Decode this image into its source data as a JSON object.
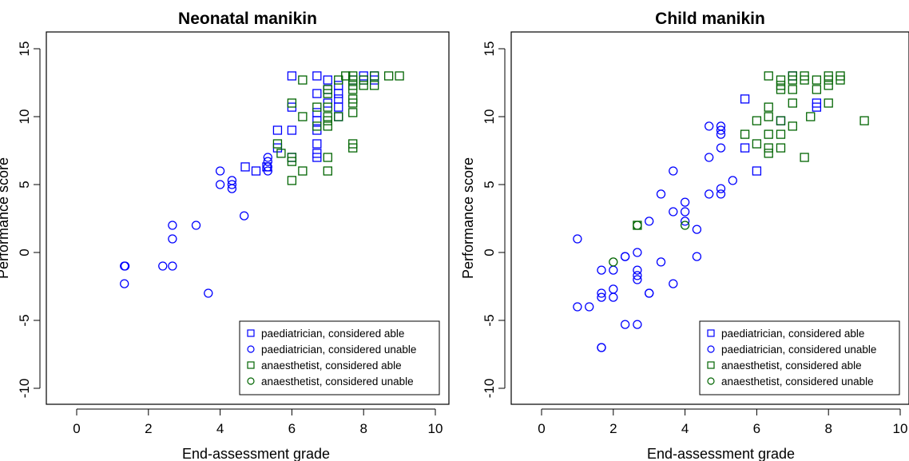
{
  "chart_data": [
    {
      "type": "scatter",
      "title": "Neonatal manikin",
      "xlabel": "End-assessment grade",
      "ylabel": "Performance score",
      "xlim": [
        0,
        10
      ],
      "ylim": [
        -11,
        16
      ],
      "xticks": [
        0,
        2,
        4,
        6,
        8,
        10
      ],
      "yticks": [
        -10,
        -5,
        0,
        5,
        10,
        15
      ],
      "grid": false,
      "legend_position": "bottom-right",
      "legend": [
        "paediatrician, considered able",
        "paediatrician, considered unable",
        "anaesthetist, considered able",
        "anaesthetist, considered unable"
      ],
      "series": [
        {
          "name": "paediatrician, considered able",
          "color": "#0000ff",
          "marker": "square",
          "points": [
            [
              4.7,
              6.3
            ],
            [
              5.0,
              6.0
            ],
            [
              5.3,
              6.3
            ],
            [
              5.6,
              9.0
            ],
            [
              5.6,
              7.7
            ],
            [
              6.0,
              13.0
            ],
            [
              6.0,
              10.7
            ],
            [
              6.0,
              9.0
            ],
            [
              6.0,
              7.0
            ],
            [
              6.7,
              13.0
            ],
            [
              6.7,
              11.7
            ],
            [
              6.7,
              10.3
            ],
            [
              6.7,
              9.7
            ],
            [
              6.7,
              9.0
            ],
            [
              6.7,
              8.0
            ],
            [
              6.7,
              7.3
            ],
            [
              6.7,
              7.0
            ],
            [
              7.0,
              12.7
            ],
            [
              7.0,
              12.0
            ],
            [
              7.0,
              11.0
            ],
            [
              7.3,
              12.3
            ],
            [
              7.3,
              11.7
            ],
            [
              7.3,
              11.3
            ],
            [
              7.3,
              10.7
            ],
            [
              7.3,
              10.0
            ],
            [
              7.7,
              12.7
            ],
            [
              8.0,
              13.0
            ],
            [
              8.0,
              12.7
            ],
            [
              8.3,
              13.0
            ],
            [
              8.3,
              12.7
            ]
          ]
        },
        {
          "name": "paediatrician, considered unable",
          "color": "#0000ff",
          "marker": "circle",
          "points": [
            [
              1.33,
              -1.0
            ],
            [
              1.33,
              -2.3
            ],
            [
              1.35,
              -1.0
            ],
            [
              2.4,
              -1.0
            ],
            [
              2.67,
              2.0
            ],
            [
              2.67,
              1.0
            ],
            [
              2.67,
              -1.0
            ],
            [
              3.33,
              2.0
            ],
            [
              3.67,
              -3.0
            ],
            [
              4.0,
              6.0
            ],
            [
              4.0,
              5.0
            ],
            [
              4.33,
              5.3
            ],
            [
              4.33,
              5.0
            ],
            [
              4.33,
              4.7
            ],
            [
              4.67,
              2.7
            ],
            [
              5.33,
              7.0
            ],
            [
              5.33,
              6.7
            ],
            [
              5.33,
              6.3
            ],
            [
              5.33,
              6.0
            ]
          ]
        },
        {
          "name": "anaesthetist, considered able",
          "color": "#006400",
          "marker": "square",
          "points": [
            [
              5.6,
              8.0
            ],
            [
              5.7,
              7.3
            ],
            [
              6.0,
              11.0
            ],
            [
              6.0,
              7.0
            ],
            [
              6.0,
              6.7
            ],
            [
              6.0,
              5.3
            ],
            [
              6.3,
              12.7
            ],
            [
              6.3,
              10.0
            ],
            [
              6.3,
              6.0
            ],
            [
              6.7,
              10.7
            ],
            [
              6.7,
              9.3
            ],
            [
              7.0,
              12.0
            ],
            [
              7.0,
              11.7
            ],
            [
              7.0,
              10.7
            ],
            [
              7.0,
              10.0
            ],
            [
              7.0,
              9.7
            ],
            [
              7.0,
              9.3
            ],
            [
              7.0,
              7.0
            ],
            [
              7.0,
              6.0
            ],
            [
              7.3,
              12.7
            ],
            [
              7.3,
              10.0
            ],
            [
              7.5,
              13.0
            ],
            [
              7.7,
              13.0
            ],
            [
              7.7,
              12.7
            ],
            [
              7.7,
              12.3
            ],
            [
              7.7,
              12.0
            ],
            [
              7.7,
              11.3
            ],
            [
              7.7,
              11.0
            ],
            [
              7.7,
              10.3
            ],
            [
              7.7,
              8.0
            ],
            [
              7.7,
              7.7
            ],
            [
              8.0,
              12.7
            ],
            [
              8.0,
              12.3
            ],
            [
              8.3,
              12.3
            ],
            [
              8.3,
              13.0
            ],
            [
              8.7,
              13.0
            ],
            [
              9.0,
              13.0
            ]
          ]
        },
        {
          "name": "anaesthetist, considered unable",
          "color": "#006400",
          "marker": "circle",
          "points": []
        }
      ]
    },
    {
      "type": "scatter",
      "title": "Child manikin",
      "xlabel": "End-assessment grade",
      "ylabel": "Performance score",
      "xlim": [
        0,
        10
      ],
      "ylim": [
        -11,
        16
      ],
      "xticks": [
        0,
        2,
        4,
        6,
        8,
        10
      ],
      "yticks": [
        -10,
        -5,
        0,
        5,
        10,
        15
      ],
      "grid": false,
      "legend_position": "bottom-right",
      "legend": [
        "paediatrician, considered able",
        "paediatrician, considered unable",
        "anaesthetist, considered able",
        "anaesthetist, considered unable"
      ],
      "series": [
        {
          "name": "paediatrician, considered able",
          "color": "#0000ff",
          "marker": "square",
          "points": [
            [
              5.67,
              11.3
            ],
            [
              5.67,
              7.7
            ],
            [
              6.0,
              6.0
            ],
            [
              6.67,
              9.7
            ],
            [
              7.0,
              13.0
            ],
            [
              7.67,
              11.0
            ],
            [
              7.67,
              10.7
            ]
          ]
        },
        {
          "name": "paediatrician, considered unable",
          "color": "#0000ff",
          "marker": "circle",
          "points": [
            [
              1.0,
              1.0
            ],
            [
              1.0,
              -4.0
            ],
            [
              1.33,
              -4.0
            ],
            [
              1.67,
              -1.3
            ],
            [
              1.67,
              -3.0
            ],
            [
              1.67,
              -3.3
            ],
            [
              1.67,
              -7.0
            ],
            [
              1.67,
              -7.0
            ],
            [
              2.0,
              -1.3
            ],
            [
              2.0,
              -2.7
            ],
            [
              2.0,
              -3.3
            ],
            [
              2.33,
              -0.3
            ],
            [
              2.33,
              -0.3
            ],
            [
              2.33,
              -5.3
            ],
            [
              2.67,
              0.0
            ],
            [
              2.67,
              -1.3
            ],
            [
              2.67,
              -1.7
            ],
            [
              2.67,
              -2.0
            ],
            [
              2.67,
              -5.3
            ],
            [
              3.0,
              2.3
            ],
            [
              3.0,
              -3.0
            ],
            [
              3.0,
              -3.0
            ],
            [
              3.33,
              4.3
            ],
            [
              3.33,
              -0.7
            ],
            [
              3.67,
              6.0
            ],
            [
              3.67,
              3.0
            ],
            [
              3.67,
              -2.3
            ],
            [
              4.0,
              3.7
            ],
            [
              4.0,
              3.0
            ],
            [
              4.0,
              2.3
            ],
            [
              4.33,
              1.7
            ],
            [
              4.33,
              -0.3
            ],
            [
              4.67,
              9.3
            ],
            [
              4.67,
              7.0
            ],
            [
              4.67,
              4.3
            ],
            [
              5.0,
              9.3
            ],
            [
              5.0,
              9.0
            ],
            [
              5.0,
              8.7
            ],
            [
              5.0,
              7.7
            ],
            [
              5.0,
              4.7
            ],
            [
              5.0,
              4.3
            ],
            [
              5.33,
              5.3
            ]
          ]
        },
        {
          "name": "anaesthetist, considered able",
          "color": "#006400",
          "marker": "square",
          "points": [
            [
              2.67,
              2.0
            ],
            [
              5.67,
              8.7
            ],
            [
              6.0,
              9.7
            ],
            [
              6.0,
              8.0
            ],
            [
              6.33,
              13.0
            ],
            [
              6.33,
              10.7
            ],
            [
              6.33,
              10.0
            ],
            [
              6.33,
              8.7
            ],
            [
              6.33,
              7.7
            ],
            [
              6.33,
              7.3
            ],
            [
              6.67,
              12.7
            ],
            [
              6.67,
              12.3
            ],
            [
              6.67,
              12.0
            ],
            [
              6.67,
              9.7
            ],
            [
              6.67,
              8.7
            ],
            [
              6.67,
              7.7
            ],
            [
              7.0,
              13.0
            ],
            [
              7.0,
              12.7
            ],
            [
              7.0,
              12.0
            ],
            [
              7.0,
              11.0
            ],
            [
              7.0,
              9.3
            ],
            [
              7.33,
              13.0
            ],
            [
              7.33,
              12.7
            ],
            [
              7.33,
              7.0
            ],
            [
              7.5,
              10.0
            ],
            [
              7.67,
              12.7
            ],
            [
              7.67,
              12.0
            ],
            [
              8.0,
              13.0
            ],
            [
              8.0,
              12.7
            ],
            [
              8.0,
              12.3
            ],
            [
              8.0,
              11.0
            ],
            [
              8.33,
              13.0
            ],
            [
              8.33,
              12.7
            ],
            [
              9.0,
              9.7
            ]
          ]
        },
        {
          "name": "anaesthetist, considered unable",
          "color": "#006400",
          "marker": "circle",
          "points": [
            [
              2.0,
              -0.7
            ],
            [
              2.67,
              2.0
            ],
            [
              4.0,
              2.0
            ]
          ]
        }
      ]
    }
  ]
}
